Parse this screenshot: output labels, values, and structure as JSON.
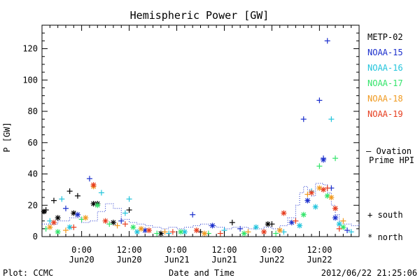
{
  "chart_data": {
    "type": "scatter",
    "title": "Hemispheric Power [GW]",
    "xlabel": "Date and Time",
    "ylabel": "P [GW]",
    "ylim": [
      0,
      135
    ],
    "xlim_hours": [
      -10,
      70
    ],
    "y_major_ticks": [
      0,
      20,
      40,
      60,
      80,
      100,
      120
    ],
    "x_ticks": [
      {
        "hour": 0,
        "time": "0:00",
        "date": "Jun20"
      },
      {
        "hour": 12,
        "time": "12:00",
        "date": "Jun20"
      },
      {
        "hour": 24,
        "time": "0:00",
        "date": "Jun21"
      },
      {
        "hour": 36,
        "time": "12:00",
        "date": "Jun21"
      },
      {
        "hour": 48,
        "time": "0:00",
        "date": "Jun22"
      },
      {
        "hour": 60,
        "time": "12:00",
        "date": "Jun22"
      }
    ],
    "legend": [
      {
        "name": "METP-02",
        "color": "#000000"
      },
      {
        "name": "NOAA-15",
        "color": "#1a2ecc"
      },
      {
        "name": "NOAA-16",
        "color": "#22c4dc"
      },
      {
        "name": "NOAA-17",
        "color": "#33e46a"
      },
      {
        "name": "NOAA-18",
        "color": "#f09a20"
      },
      {
        "name": "NOAA-19",
        "color": "#e63c1e"
      }
    ],
    "ovation_label_1": "— Ovation",
    "ovation_label_2": "Prime HPI",
    "ovation_color": "#1a2ecc",
    "marker_legend": [
      {
        "symbol": "+",
        "label": "south"
      },
      {
        "symbol": "*",
        "label": "north"
      }
    ],
    "ovation_hpi": [
      [
        -10,
        8
      ],
      [
        -6,
        10
      ],
      [
        -3,
        12
      ],
      [
        0,
        9
      ],
      [
        2,
        10
      ],
      [
        4,
        16
      ],
      [
        6,
        21
      ],
      [
        8,
        18
      ],
      [
        10,
        11
      ],
      [
        12,
        9
      ],
      [
        14,
        8
      ],
      [
        16,
        7
      ],
      [
        18,
        6
      ],
      [
        20,
        5
      ],
      [
        22,
        6
      ],
      [
        24,
        5
      ],
      [
        26,
        6
      ],
      [
        28,
        7
      ],
      [
        30,
        8
      ],
      [
        32,
        7
      ],
      [
        34,
        6
      ],
      [
        36,
        5
      ],
      [
        38,
        6
      ],
      [
        40,
        6
      ],
      [
        42,
        5
      ],
      [
        44,
        5
      ],
      [
        46,
        6
      ],
      [
        48,
        5
      ],
      [
        50,
        7
      ],
      [
        52,
        12
      ],
      [
        54,
        20
      ],
      [
        55,
        28
      ],
      [
        56,
        32
      ],
      [
        57,
        30
      ],
      [
        58,
        26
      ],
      [
        59,
        34
      ],
      [
        60,
        34
      ],
      [
        61,
        33
      ],
      [
        62,
        28
      ],
      [
        63,
        20
      ],
      [
        64,
        14
      ],
      [
        65,
        10
      ],
      [
        66,
        8
      ],
      [
        68,
        7
      ],
      [
        70,
        8
      ]
    ],
    "points": [
      {
        "sat": "METP-02",
        "m": "+",
        "x": -9,
        "y": 17
      },
      {
        "sat": "METP-02",
        "m": "+",
        "x": -7,
        "y": 23
      },
      {
        "sat": "METP-02",
        "m": "+",
        "x": -3,
        "y": 29
      },
      {
        "sat": "METP-02",
        "m": "+",
        "x": -1,
        "y": 26
      },
      {
        "sat": "METP-02",
        "m": "*",
        "x": -9.5,
        "y": 16
      },
      {
        "sat": "METP-02",
        "m": "*",
        "x": -6,
        "y": 12
      },
      {
        "sat": "METP-02",
        "m": "*",
        "x": -2,
        "y": 15
      },
      {
        "sat": "METP-02",
        "m": "*",
        "x": 3,
        "y": 21
      },
      {
        "sat": "METP-02",
        "m": "*",
        "x": 4,
        "y": 21
      },
      {
        "sat": "METP-02",
        "m": "+",
        "x": 12,
        "y": 17
      },
      {
        "sat": "METP-02",
        "m": "*",
        "x": 8,
        "y": 9
      },
      {
        "sat": "METP-02",
        "m": "+",
        "x": 38,
        "y": 9
      },
      {
        "sat": "METP-02",
        "m": "*",
        "x": 47,
        "y": 8
      },
      {
        "sat": "METP-02",
        "m": "+",
        "x": 48,
        "y": 8
      },
      {
        "sat": "METP-02",
        "m": "*",
        "x": 20,
        "y": 2
      },
      {
        "sat": "METP-02",
        "m": "+",
        "x": 30,
        "y": 3
      },
      {
        "sat": "NOAA-15",
        "m": "+",
        "x": 2,
        "y": 37
      },
      {
        "sat": "NOAA-15",
        "m": "+",
        "x": -4,
        "y": 18
      },
      {
        "sat": "NOAA-15",
        "m": "*",
        "x": -1,
        "y": 14
      },
      {
        "sat": "NOAA-15",
        "m": "+",
        "x": 10,
        "y": 10
      },
      {
        "sat": "NOAA-15",
        "m": "*",
        "x": 16,
        "y": 4
      },
      {
        "sat": "NOAA-15",
        "m": "+",
        "x": 28,
        "y": 14
      },
      {
        "sat": "NOAA-15",
        "m": "*",
        "x": 33,
        "y": 7
      },
      {
        "sat": "NOAA-15",
        "m": "+",
        "x": 40,
        "y": 5
      },
      {
        "sat": "NOAA-15",
        "m": "*",
        "x": 53,
        "y": 9
      },
      {
        "sat": "NOAA-15",
        "m": "+",
        "x": 56,
        "y": 75
      },
      {
        "sat": "NOAA-15",
        "m": "+",
        "x": 60,
        "y": 87
      },
      {
        "sat": "NOAA-15",
        "m": "+",
        "x": 61,
        "y": 50
      },
      {
        "sat": "NOAA-15",
        "m": "*",
        "x": 61,
        "y": 49
      },
      {
        "sat": "NOAA-15",
        "m": "+",
        "x": 62,
        "y": 125
      },
      {
        "sat": "NOAA-15",
        "m": "*",
        "x": 57,
        "y": 23
      },
      {
        "sat": "NOAA-15",
        "m": "+",
        "x": 63,
        "y": 31
      },
      {
        "sat": "NOAA-15",
        "m": "*",
        "x": 64,
        "y": 12
      },
      {
        "sat": "NOAA-15",
        "m": "+",
        "x": 67,
        "y": 4
      },
      {
        "sat": "NOAA-16",
        "m": "+",
        "x": -8,
        "y": 10
      },
      {
        "sat": "NOAA-16",
        "m": "+",
        "x": -5,
        "y": 24
      },
      {
        "sat": "NOAA-16",
        "m": "*",
        "x": -3,
        "y": 6
      },
      {
        "sat": "NOAA-16",
        "m": "+",
        "x": 5,
        "y": 28
      },
      {
        "sat": "NOAA-16",
        "m": "+",
        "x": 11,
        "y": 15
      },
      {
        "sat": "NOAA-16",
        "m": "+",
        "x": 12,
        "y": 24
      },
      {
        "sat": "NOAA-16",
        "m": "*",
        "x": 14,
        "y": 3
      },
      {
        "sat": "NOAA-16",
        "m": "+",
        "x": 22,
        "y": 2
      },
      {
        "sat": "NOAA-16",
        "m": "*",
        "x": 26,
        "y": 3
      },
      {
        "sat": "NOAA-16",
        "m": "+",
        "x": 36,
        "y": 4
      },
      {
        "sat": "NOAA-16",
        "m": "*",
        "x": 44,
        "y": 6
      },
      {
        "sat": "NOAA-16",
        "m": "+",
        "x": 51,
        "y": 3
      },
      {
        "sat": "NOAA-16",
        "m": "*",
        "x": 55,
        "y": 7
      },
      {
        "sat": "NOAA-16",
        "m": "+",
        "x": 58,
        "y": 29
      },
      {
        "sat": "NOAA-16",
        "m": "*",
        "x": 59,
        "y": 19
      },
      {
        "sat": "NOAA-16",
        "m": "+",
        "x": 63,
        "y": 75
      },
      {
        "sat": "NOAA-16",
        "m": "*",
        "x": 65,
        "y": 8
      },
      {
        "sat": "NOAA-16",
        "m": "+",
        "x": 68,
        "y": 3
      },
      {
        "sat": "NOAA-17",
        "m": "+",
        "x": -9,
        "y": 5
      },
      {
        "sat": "NOAA-17",
        "m": "*",
        "x": -6,
        "y": 3
      },
      {
        "sat": "NOAA-17",
        "m": "+",
        "x": 0,
        "y": 11
      },
      {
        "sat": "NOAA-17",
        "m": "*",
        "x": 4,
        "y": 20
      },
      {
        "sat": "NOAA-17",
        "m": "+",
        "x": 7,
        "y": 8
      },
      {
        "sat": "NOAA-17",
        "m": "*",
        "x": 13,
        "y": 6
      },
      {
        "sat": "NOAA-17",
        "m": "+",
        "x": 19,
        "y": 2
      },
      {
        "sat": "NOAA-17",
        "m": "*",
        "x": 25,
        "y": 3
      },
      {
        "sat": "NOAA-17",
        "m": "+",
        "x": 32,
        "y": 2
      },
      {
        "sat": "NOAA-17",
        "m": "*",
        "x": 41,
        "y": 2
      },
      {
        "sat": "NOAA-17",
        "m": "+",
        "x": 49,
        "y": 2
      },
      {
        "sat": "NOAA-17",
        "m": "*",
        "x": 56,
        "y": 14
      },
      {
        "sat": "NOAA-17",
        "m": "+",
        "x": 60,
        "y": 45
      },
      {
        "sat": "NOAA-17",
        "m": "+",
        "x": 64,
        "y": 50
      },
      {
        "sat": "NOAA-17",
        "m": "*",
        "x": 62,
        "y": 26
      },
      {
        "sat": "NOAA-17",
        "m": "*",
        "x": 66,
        "y": 6
      },
      {
        "sat": "NOAA-18",
        "m": "*",
        "x": -8,
        "y": 6
      },
      {
        "sat": "NOAA-18",
        "m": "+",
        "x": -4,
        "y": 4
      },
      {
        "sat": "NOAA-18",
        "m": "*",
        "x": 1,
        "y": 12
      },
      {
        "sat": "NOAA-18",
        "m": "*",
        "x": 3,
        "y": 32
      },
      {
        "sat": "NOAA-18",
        "m": "+",
        "x": 9,
        "y": 7
      },
      {
        "sat": "NOAA-18",
        "m": "*",
        "x": 15,
        "y": 5
      },
      {
        "sat": "NOAA-18",
        "m": "+",
        "x": 21,
        "y": 3
      },
      {
        "sat": "NOAA-18",
        "m": "*",
        "x": 31,
        "y": 2
      },
      {
        "sat": "NOAA-18",
        "m": "+",
        "x": 42,
        "y": 3
      },
      {
        "sat": "NOAA-18",
        "m": "*",
        "x": 50,
        "y": 4
      },
      {
        "sat": "NOAA-18",
        "m": "+",
        "x": 57,
        "y": 27
      },
      {
        "sat": "NOAA-18",
        "m": "*",
        "x": 60,
        "y": 31
      },
      {
        "sat": "NOAA-18",
        "m": "*",
        "x": 63,
        "y": 25
      },
      {
        "sat": "NOAA-18",
        "m": "+",
        "x": 66,
        "y": 10
      },
      {
        "sat": "NOAA-19",
        "m": "*",
        "x": -7,
        "y": 9
      },
      {
        "sat": "NOAA-19",
        "m": "+",
        "x": -2,
        "y": 6
      },
      {
        "sat": "NOAA-19",
        "m": "*",
        "x": 3,
        "y": 33
      },
      {
        "sat": "NOAA-19",
        "m": "*",
        "x": 6,
        "y": 10
      },
      {
        "sat": "NOAA-19",
        "m": "+",
        "x": 11,
        "y": 8
      },
      {
        "sat": "NOAA-19",
        "m": "*",
        "x": 17,
        "y": 4
      },
      {
        "sat": "NOAA-19",
        "m": "+",
        "x": 23,
        "y": 3
      },
      {
        "sat": "NOAA-19",
        "m": "*",
        "x": 29,
        "y": 4
      },
      {
        "sat": "NOAA-19",
        "m": "+",
        "x": 35,
        "y": 2
      },
      {
        "sat": "NOAA-19",
        "m": "*",
        "x": 46,
        "y": 3
      },
      {
        "sat": "NOAA-19",
        "m": "*",
        "x": 51,
        "y": 15
      },
      {
        "sat": "NOAA-19",
        "m": "+",
        "x": 54,
        "y": 10
      },
      {
        "sat": "NOAA-19",
        "m": "*",
        "x": 58,
        "y": 28
      },
      {
        "sat": "NOAA-19",
        "m": "*",
        "x": 61,
        "y": 30
      },
      {
        "sat": "NOAA-19",
        "m": "+",
        "x": 62,
        "y": 31
      },
      {
        "sat": "NOAA-19",
        "m": "*",
        "x": 64,
        "y": 18
      },
      {
        "sat": "NOAA-19",
        "m": "+",
        "x": 65,
        "y": 5
      }
    ]
  },
  "footer": {
    "plot_credit": "Plot: CCMC",
    "timestamp": "2012/06/22 21:25:06"
  }
}
